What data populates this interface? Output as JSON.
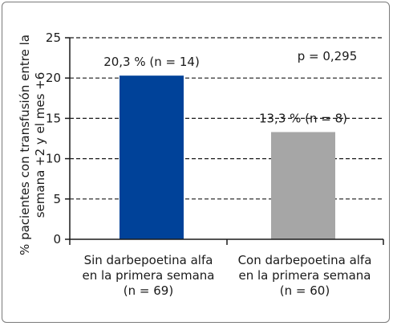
{
  "chart_data": {
    "type": "bar",
    "categories": [
      [
        "Sin darbepoetina alfa",
        "en la primera semana",
        "(n = 69)"
      ],
      [
        "Con darbepoetina alfa",
        "en la primera semana",
        "(n = 60)"
      ]
    ],
    "values": [
      20.3,
      13.3
    ],
    "data_labels": [
      "20,3 % (n = 14)",
      "13,3 % (n = 8)"
    ],
    "bar_colors": [
      "#004299",
      "#a6a6a6"
    ],
    "ylabel_lines": [
      "% pacientes con transfusión entre la",
      "semana +2 y el mes +6"
    ],
    "yticks": [
      0,
      5,
      10,
      15,
      20,
      25
    ],
    "ytick_labels": [
      "0",
      "5",
      "10",
      "15",
      "20",
      "25"
    ],
    "ylim": [
      0,
      25
    ],
    "grid": "dashed horizontal at major ticks",
    "annotation": "p = 0,295"
  }
}
